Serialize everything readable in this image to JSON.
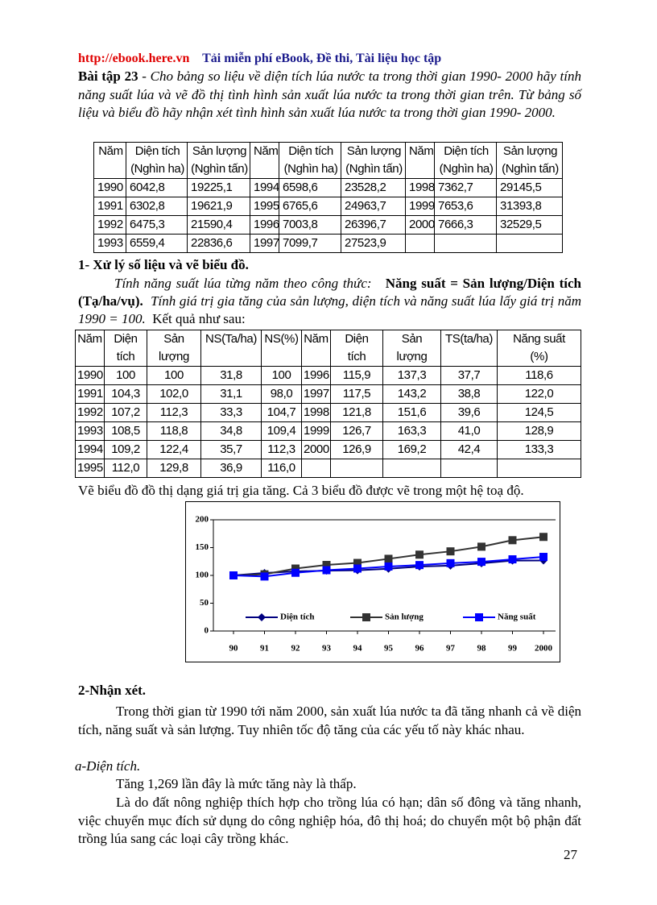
{
  "header": {
    "link": "http://ebook.here.vn",
    "tagline": "Tải miễn phí eBook, Đề thi, Tài liệu học tập"
  },
  "exercise": {
    "label": "Bài tập 23",
    "text": " - Cho bảng so liệu về diện tích  lúa nước ta trong thời gian 1990- 2000 hãy tính năng suất lúa và vẽ đồ thị  tình hình sản xuất lúa nước ta trong thời gian trên. Từ bảng số liệu và biểu đồ hãy nhận xét tình hình sản xuất lúa nước ta trong thời gian 1990- 2000."
  },
  "table1": {
    "headers": [
      [
        "Năm"
      ],
      [
        "Diện tích",
        "(Nghìn ha)"
      ],
      [
        "Sản lượng",
        "(Nghìn tấn)"
      ],
      [
        "Năm"
      ],
      [
        "Diện tích",
        "(Nghìn ha)"
      ],
      [
        "Sản lượng",
        "(Nghìn tấn)"
      ],
      [
        "Năm"
      ],
      [
        "Diện tích",
        "(Nghìn ha)"
      ],
      [
        "Sản lượng",
        "(Nghìn tấn)"
      ]
    ],
    "rows": [
      [
        "1990",
        "6042,8",
        "19225,1",
        "1994",
        "6598,6",
        "23528,2",
        "1998",
        "7362,7",
        "29145,5"
      ],
      [
        "1991",
        "6302,8",
        "19621,9",
        "1995",
        "6765,6",
        "24963,7",
        "1999",
        "7653,6",
        "31393,8"
      ],
      [
        "1992",
        "6475,3",
        "21590,4",
        "1996",
        "7003,8",
        "26396,7",
        "2000",
        "7666,3",
        "32529,5"
      ],
      [
        "1993",
        "6559,4",
        "22836,6",
        "1997",
        "7099,7",
        "27523,9"
      ]
    ]
  },
  "section1": {
    "title": "1- Xử lý số liệu và vẽ biểu đồ.",
    "intro": "Tính năng suất  lúa từng năm theo công thức:",
    "formula": "Năng suất = Sản lượng/Diện tích (Tạ/ha/vụ).",
    "instruction": "Tính giá trị gia tăng của sản lượng, diện tích và năng suất lúa lấy giá trị năm 1990 = 100.",
    "result": "Kết quả như sau:"
  },
  "table2": {
    "headers": [
      [
        "Năm"
      ],
      [
        "Diện",
        "tích"
      ],
      [
        "Sản",
        "lượng"
      ],
      [
        "NS(Ta/ha)"
      ],
      [
        "NS(%)"
      ],
      [
        "Năm"
      ],
      [
        "Diện",
        "tích"
      ],
      [
        "Sản",
        "lượng"
      ],
      [
        "TS(ta/ha)"
      ],
      [
        "Năng suất",
        "(%)"
      ]
    ],
    "rows": [
      [
        "1990",
        "100",
        "100",
        "31,8",
        "100",
        "1996",
        "115,9",
        "137,3",
        "37,7",
        "118,6"
      ],
      [
        "1991",
        "104,3",
        "102,0",
        "31,1",
        "98,0",
        "1997",
        "117,5",
        "143,2",
        "38,8",
        "122,0"
      ],
      [
        "1992",
        "107,2",
        "112,3",
        "33,3",
        "104,7",
        "1998",
        "121,8",
        "151,6",
        "39,6",
        "124,5"
      ],
      [
        "1993",
        "108,5",
        "118,8",
        "34,8",
        "109,4",
        "1999",
        "126,7",
        "163,3",
        "41,0",
        "128,9"
      ],
      [
        "1994",
        "109,2",
        "122,4",
        "35,7",
        "112,3",
        "2000",
        "126,9",
        "169,2",
        "42,4",
        "133,3"
      ],
      [
        "1995",
        "112,0",
        "129,8",
        "36,9",
        "116,0"
      ]
    ]
  },
  "chart_intro": "Vẽ biểu đồ đồ thị dạng giá trị gia tăng.  Cả 3 biểu đồ được vẽ trong  một hệ toạ độ.",
  "chart_data": {
    "type": "line",
    "categories": [
      "90",
      "91",
      "92",
      "93",
      "94",
      "95",
      "96",
      "97",
      "98",
      "99",
      "2000"
    ],
    "series": [
      {
        "name": "Diện tích",
        "color": "#000080",
        "marker": "diamond",
        "values": [
          100,
          104.3,
          107.2,
          108.5,
          109.2,
          112.0,
          115.9,
          117.5,
          121.8,
          126.7,
          126.9
        ]
      },
      {
        "name": "Sản lượng",
        "color": "#333333",
        "marker": "square",
        "values": [
          100,
          102.0,
          112.3,
          118.8,
          122.4,
          129.8,
          137.3,
          143.2,
          151.6,
          163.3,
          169.2
        ]
      },
      {
        "name": "Năng suất",
        "color": "#0000ff",
        "marker": "square",
        "values": [
          100,
          98.0,
          104.7,
          109.4,
          112.3,
          116.0,
          118.6,
          122.0,
          124.5,
          128.9,
          133.3
        ]
      }
    ],
    "ylim": [
      0,
      200
    ],
    "yticks": [
      0,
      50,
      100,
      150,
      200
    ],
    "grid": false,
    "legend": "bottom"
  },
  "section2": {
    "title": "2-Nhận xét.",
    "overview": "Trong thời gian từ 1990 tới năm 2000, sản xuất lúa nước ta đã tăng nhanh cả về diện tích, năng suất và sản lượng. Tuy nhiên tốc độ tăng của các yếu tố này khác nhau.",
    "subheading": "a-Diện tích.",
    "points": [
      "Tăng 1,269 lần đây là mức tăng này là thấp.",
      "Là do đất nông nghiệp thích hợp cho trồng lúa có hạn; dân số đông và tăng nhanh, việc chuyển mục đích sử dụng do công nghiệp hóa, đô thị hoá; do chuyển một bộ phận đất trồng lúa sang các loại cây trồng khác."
    ]
  },
  "page_number": "27"
}
